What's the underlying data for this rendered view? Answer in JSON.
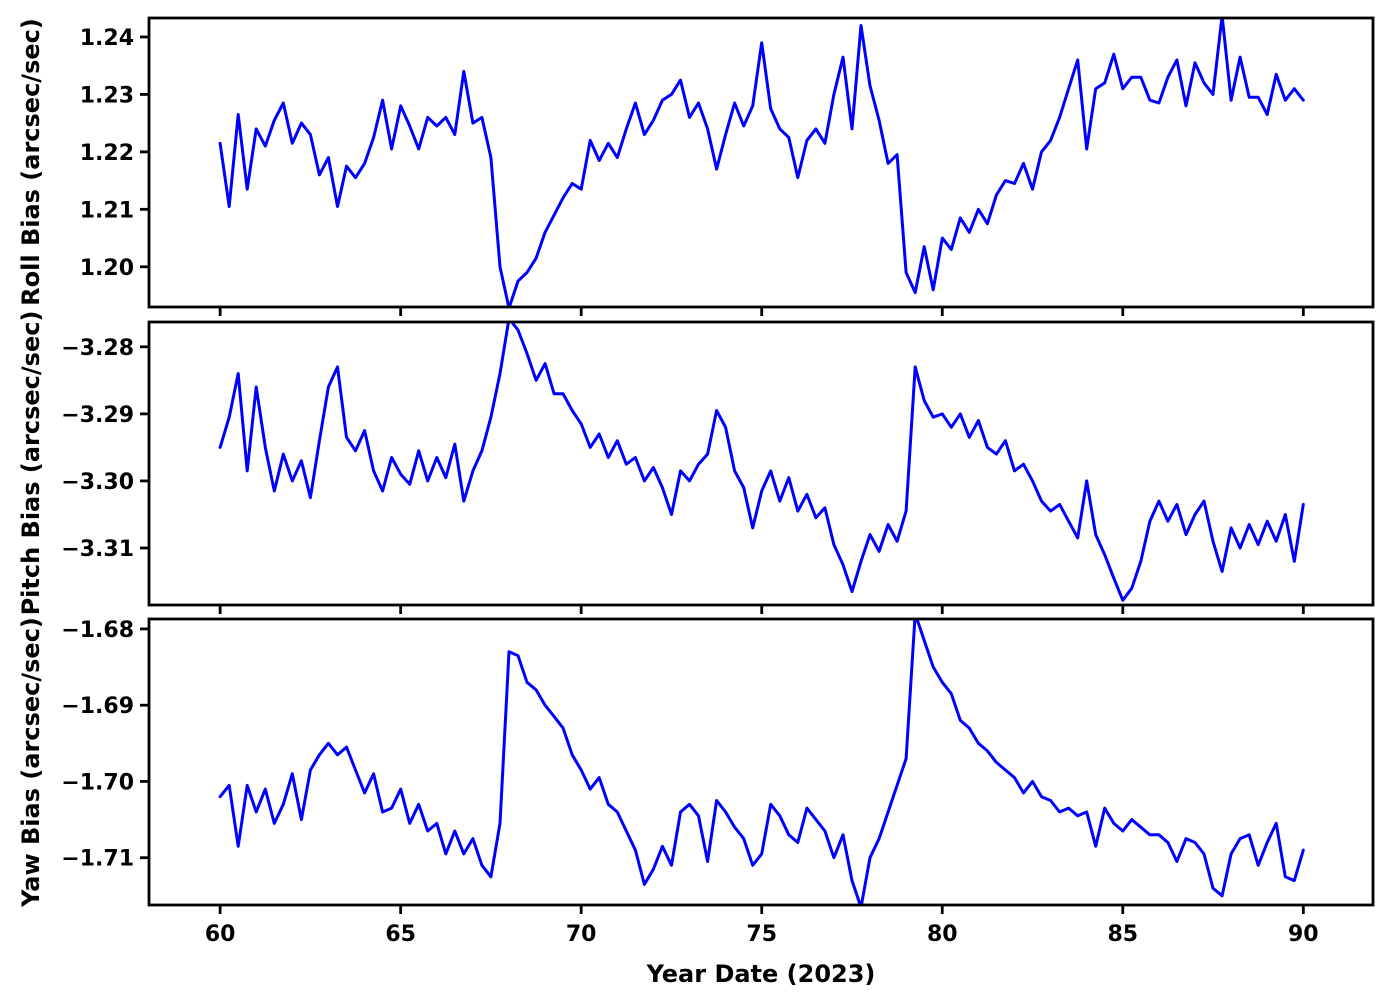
{
  "chart_data": {
    "type": "line",
    "title": "",
    "xlabel": "Year Date (2023)",
    "line_color": "#0000FF",
    "background_color": "#FFFFFF",
    "grid": false,
    "legend": false,
    "xlim": [
      58.03,
      91.93
    ],
    "x_ticks": [
      [
        60,
        "60"
      ],
      [
        65,
        "65"
      ],
      [
        70,
        "70"
      ],
      [
        75,
        "75"
      ],
      [
        80,
        "80"
      ],
      [
        85,
        "85"
      ],
      [
        90,
        "90"
      ]
    ],
    "x_start": 60.0,
    "x_step": 0.25,
    "panels": [
      {
        "id": "roll",
        "ylabel": "Roll Bias (arcsec/sec)",
        "ylim": [
          1.193,
          1.2433
        ],
        "y_ticks": [
          [
            1.2,
            "1.20"
          ],
          [
            1.21,
            "1.21"
          ],
          [
            1.22,
            "1.22"
          ],
          [
            1.23,
            "1.23"
          ],
          [
            1.24,
            "1.24"
          ]
        ],
        "values": [
          1.2215,
          1.2105,
          1.2265,
          1.2135,
          1.224,
          1.221,
          1.2255,
          1.2285,
          1.2215,
          1.225,
          1.223,
          1.216,
          1.219,
          1.2105,
          1.2175,
          1.2155,
          1.218,
          1.2225,
          1.229,
          1.2205,
          1.228,
          1.2245,
          1.2205,
          1.226,
          1.2245,
          1.226,
          1.223,
          1.234,
          1.225,
          1.226,
          1.219,
          1.2,
          1.1928,
          1.1975,
          1.199,
          1.2015,
          1.206,
          1.209,
          1.212,
          1.2145,
          1.2135,
          1.222,
          1.2185,
          1.2215,
          1.219,
          1.224,
          1.2285,
          1.223,
          1.2255,
          1.229,
          1.23,
          1.2325,
          1.226,
          1.2285,
          1.224,
          1.217,
          1.223,
          1.2285,
          1.2245,
          1.228,
          1.239,
          1.2275,
          1.224,
          1.2225,
          1.2155,
          1.222,
          1.224,
          1.2215,
          1.23,
          1.2365,
          1.224,
          1.242,
          1.2315,
          1.2255,
          1.218,
          1.2195,
          1.199,
          1.1955,
          1.2035,
          1.196,
          1.205,
          1.203,
          1.2085,
          1.206,
          1.21,
          1.2075,
          1.2125,
          1.215,
          1.2145,
          1.218,
          1.2135,
          1.22,
          1.222,
          1.226,
          1.231,
          1.236,
          1.2205,
          1.231,
          1.232,
          1.237,
          1.231,
          1.233,
          1.233,
          1.229,
          1.2285,
          1.233,
          1.236,
          1.228,
          1.2355,
          1.232,
          1.23,
          1.2437,
          1.229,
          1.2365,
          1.2295,
          1.2295,
          1.2265,
          1.2335,
          1.229,
          1.231,
          1.229
        ]
      },
      {
        "id": "pitch",
        "ylabel": "Pitch Bias (arcsec/sec)",
        "ylim": [
          -3.3185,
          -3.2763
        ],
        "y_ticks": [
          [
            -3.31,
            "−3.31"
          ],
          [
            -3.3,
            "−3.30"
          ],
          [
            -3.29,
            "−3.29"
          ],
          [
            -3.28,
            "−3.28"
          ]
        ],
        "values": [
          -3.295,
          -3.2905,
          -3.284,
          -3.2985,
          -3.286,
          -3.295,
          -3.3015,
          -3.296,
          -3.3,
          -3.297,
          -3.3025,
          -3.294,
          -3.286,
          -3.283,
          -3.2935,
          -3.2955,
          -3.2925,
          -3.2985,
          -3.3015,
          -3.2965,
          -3.299,
          -3.3005,
          -3.2955,
          -3.3,
          -3.2965,
          -3.2995,
          -3.2945,
          -3.303,
          -3.2985,
          -3.2955,
          -3.2905,
          -3.284,
          -3.2758,
          -3.2775,
          -3.281,
          -3.285,
          -3.2825,
          -3.287,
          -3.287,
          -3.2895,
          -3.2915,
          -3.295,
          -3.293,
          -3.2965,
          -3.294,
          -3.2975,
          -3.2965,
          -3.3,
          -3.298,
          -3.301,
          -3.305,
          -3.2985,
          -3.3,
          -3.2975,
          -3.296,
          -3.2895,
          -3.292,
          -3.2985,
          -3.301,
          -3.307,
          -3.3015,
          -3.2985,
          -3.303,
          -3.2995,
          -3.3045,
          -3.302,
          -3.3055,
          -3.304,
          -3.3095,
          -3.3125,
          -3.3165,
          -3.312,
          -3.308,
          -3.3105,
          -3.3065,
          -3.309,
          -3.3045,
          -3.283,
          -3.288,
          -3.2905,
          -3.29,
          -3.292,
          -3.29,
          -3.2935,
          -3.291,
          -3.295,
          -3.296,
          -3.294,
          -3.2985,
          -3.2975,
          -3.3,
          -3.303,
          -3.3045,
          -3.3035,
          -3.306,
          -3.3085,
          -3.3,
          -3.308,
          -3.311,
          -3.3145,
          -3.3178,
          -3.316,
          -3.312,
          -3.306,
          -3.303,
          -3.306,
          -3.3035,
          -3.308,
          -3.305,
          -3.303,
          -3.309,
          -3.3135,
          -3.307,
          -3.31,
          -3.3065,
          -3.3095,
          -3.306,
          -3.309,
          -3.305,
          -3.312,
          -3.3035
        ]
      },
      {
        "id": "yaw",
        "ylabel": "Yaw Bias (arcsec/sec)",
        "ylim": [
          -1.7162,
          -1.6787
        ],
        "y_ticks": [
          [
            -1.71,
            "−1.71"
          ],
          [
            -1.7,
            "−1.70"
          ],
          [
            -1.69,
            "−1.69"
          ],
          [
            -1.68,
            "−1.68"
          ]
        ],
        "values": [
          -1.702,
          -1.7005,
          -1.7085,
          -1.7005,
          -1.704,
          -1.701,
          -1.7055,
          -1.703,
          -1.699,
          -1.705,
          -1.6985,
          -1.6965,
          -1.695,
          -1.6965,
          -1.6955,
          -1.6985,
          -1.7015,
          -1.699,
          -1.704,
          -1.7035,
          -1.701,
          -1.7055,
          -1.703,
          -1.7065,
          -1.7055,
          -1.7095,
          -1.7065,
          -1.7095,
          -1.7075,
          -1.711,
          -1.7125,
          -1.7055,
          -1.683,
          -1.6835,
          -1.687,
          -1.688,
          -1.69,
          -1.6915,
          -1.693,
          -1.6965,
          -1.6985,
          -1.701,
          -1.6995,
          -1.703,
          -1.704,
          -1.7065,
          -1.709,
          -1.7135,
          -1.7115,
          -1.7085,
          -1.711,
          -1.704,
          -1.703,
          -1.7045,
          -1.7105,
          -1.7025,
          -1.704,
          -1.706,
          -1.7075,
          -1.711,
          -1.7095,
          -1.703,
          -1.7045,
          -1.707,
          -1.708,
          -1.7035,
          -1.705,
          -1.7065,
          -1.71,
          -1.707,
          -1.713,
          -1.7165,
          -1.71,
          -1.7075,
          -1.704,
          -1.7005,
          -1.697,
          -1.678,
          -1.6815,
          -1.685,
          -1.687,
          -1.6885,
          -1.692,
          -1.693,
          -1.695,
          -1.696,
          -1.6975,
          -1.6985,
          -1.6995,
          -1.7015,
          -1.7,
          -1.702,
          -1.7025,
          -1.704,
          -1.7035,
          -1.7045,
          -1.704,
          -1.7085,
          -1.7035,
          -1.7055,
          -1.7065,
          -1.705,
          -1.706,
          -1.707,
          -1.707,
          -1.708,
          -1.7105,
          -1.7075,
          -1.708,
          -1.7095,
          -1.714,
          -1.715,
          -1.7095,
          -1.7075,
          -1.707,
          -1.711,
          -1.708,
          -1.7055,
          -1.7125,
          -1.713,
          -1.709
        ]
      }
    ]
  }
}
